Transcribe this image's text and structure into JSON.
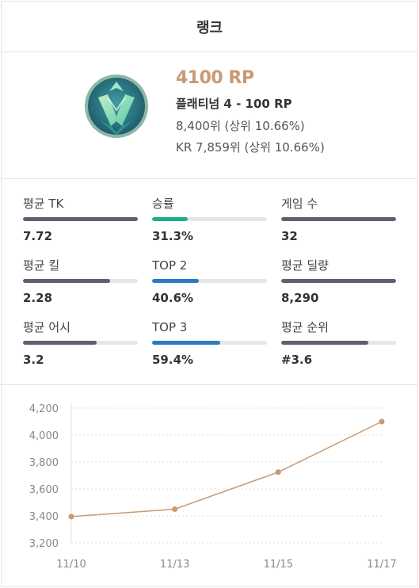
{
  "header": {
    "title": "랭크"
  },
  "rank": {
    "rp": "4100 RP",
    "tier": "플래티넘 4 - 100 RP",
    "global": "8,400위 (상위 10.66%)",
    "regional": "KR 7,859위 (상위 10.66%)",
    "emblem_icon": "platinum-emblem-icon",
    "emblem_colors": {
      "ring": "#4e8a7e",
      "inner": "#2b7d8e",
      "shape": "#8fe0c4"
    }
  },
  "stats": [
    {
      "label": "평균 TK",
      "value": "7.72",
      "fill": 1.0,
      "color": "#5c6170"
    },
    {
      "label": "승률",
      "value": "31.3%",
      "fill": 0.313,
      "color": "#1fae8e"
    },
    {
      "label": "게임 수",
      "value": "32",
      "fill": 1.0,
      "color": "#5c6170"
    },
    {
      "label": "평균 킬",
      "value": "2.28",
      "fill": 0.76,
      "color": "#5c6170"
    },
    {
      "label": "TOP 2",
      "value": "40.6%",
      "fill": 0.406,
      "color": "#2a7bc4"
    },
    {
      "label": "평균 딜량",
      "value": "8,290",
      "fill": 1.0,
      "color": "#5c6170"
    },
    {
      "label": "평균 어시",
      "value": "3.2",
      "fill": 0.64,
      "color": "#5c6170"
    },
    {
      "label": "TOP 3",
      "value": "59.4%",
      "fill": 0.594,
      "color": "#2a7bc4"
    },
    {
      "label": "평균 순위",
      "value": "#3.6",
      "fill": 0.76,
      "color": "#5c6170"
    }
  ],
  "chart_data": {
    "type": "line",
    "x": [
      "11/10",
      "11/13",
      "11/15",
      "11/17"
    ],
    "series": [
      {
        "values": [
          3395,
          3450,
          3725,
          4100
        ],
        "color": "#c89a72"
      }
    ],
    "yticks": [
      "4,200",
      "4,000",
      "3,800",
      "3,600",
      "3,400",
      "3,200"
    ],
    "ytick_values": [
      4200,
      4000,
      3800,
      3600,
      3400,
      3200
    ],
    "ylim": [
      3200,
      4200
    ],
    "grid": "horizontal dotted"
  }
}
